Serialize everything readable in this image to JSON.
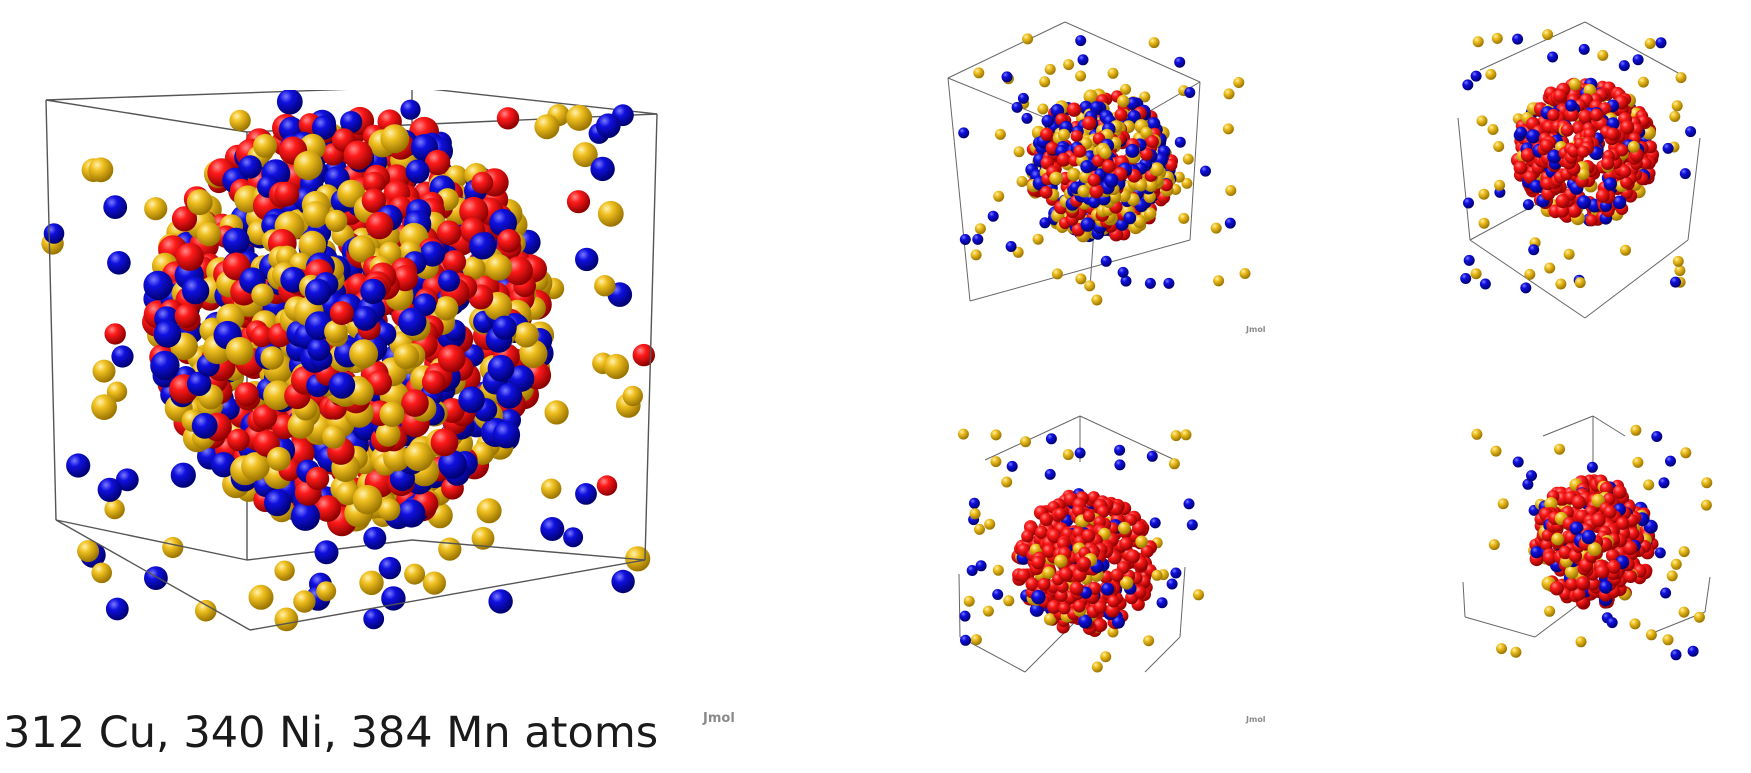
{
  "caption": "312 Cu, 340 Ni, 384 Mn atoms",
  "views": {
    "main": {
      "watermark": "Jmol"
    },
    "thumb_1": {
      "watermark": "Jmol"
    },
    "thumb_3": {
      "watermark": "Jmol"
    }
  },
  "atom_colors": {
    "red": "#e30000",
    "blue": "#0000cc",
    "gold": "#e8b819"
  },
  "box_edge_color": "#555555"
}
